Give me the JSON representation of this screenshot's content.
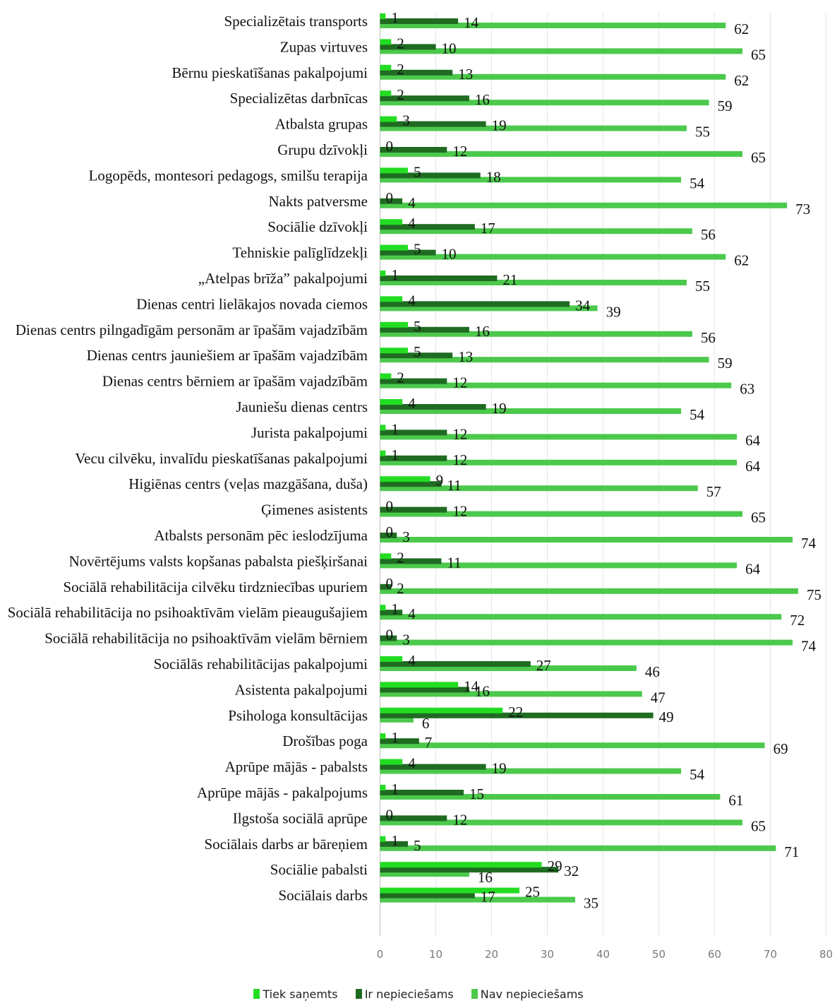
{
  "chart_data": {
    "type": "bar",
    "orientation": "horizontal",
    "categories": [
      "Specializētais transports",
      "Zupas virtuves",
      "Bērnu pieskatīšanas pakalpojumi",
      "Specializētas darbnīcas",
      "Atbalsta grupas",
      "Grupu dzīvokļi",
      "Logopēds, montesori pedagogs, smilšu terapija",
      "Nakts patversme",
      "Sociālie dzīvokļi",
      "Tehniskie palīglīdzekļi",
      "„Atelpas brīža” pakalpojumi",
      "Dienas centri lielākajos novada ciemos",
      "Dienas centrs pilngadīgām personām ar īpašām vajadzībām",
      "Dienas centrs jauniešiem ar īpašām vajadzībām",
      "Dienas centrs bērniem ar īpašām vajadzībām",
      "Jauniešu dienas centrs",
      "Jurista pakalpojumi",
      "Vecu cilvēku, invalīdu pieskatīšanas pakalpojumi",
      "Higiēnas centrs (veļas mazgāšana, duša)",
      "Ģimenes asistents",
      "Atbalsts personām pēc ieslodzījuma",
      "Novērtējums valsts kopšanas pabalsta piešķiršanai",
      "Sociālā rehabilitācija cilvēku tirdzniecības upuriem",
      "Sociālā rehabilitācija no psihoaktīvām vielām pieaugušajiem",
      "Sociālā rehabilitācija  no psihoaktīvām vielām bērniem",
      "Sociālās rehabilitācijas pakalpojumi",
      "Asistenta pakalpojumi",
      "Psihologa konsultācijas",
      "Drošības poga",
      "Aprūpe mājās - pabalsts",
      "Aprūpe mājās - pakalpojums",
      "Ilgstoša sociālā aprūpe",
      "Sociālais darbs ar bāreņiem",
      "Sociālie pabalsti",
      "Sociālais darbs"
    ],
    "series": [
      {
        "name": "Tiek saņemts",
        "color": "#22dd22",
        "values": [
          1,
          2,
          2,
          2,
          3,
          0,
          5,
          0,
          4,
          5,
          1,
          4,
          5,
          5,
          2,
          4,
          1,
          1,
          9,
          0,
          0,
          2,
          0,
          1,
          0,
          4,
          14,
          22,
          1,
          4,
          1,
          0,
          1,
          29,
          25
        ]
      },
      {
        "name": "Ir nepieciešams",
        "color": "#1f6b22",
        "values": [
          14,
          10,
          13,
          16,
          19,
          12,
          18,
          4,
          17,
          10,
          21,
          34,
          16,
          13,
          12,
          19,
          12,
          12,
          11,
          12,
          3,
          11,
          2,
          4,
          3,
          27,
          16,
          49,
          7,
          19,
          15,
          12,
          5,
          32,
          17
        ]
      },
      {
        "name": "Nav nepieciešams",
        "color": "#4cc94c",
        "values": [
          62,
          65,
          62,
          59,
          55,
          65,
          54,
          73,
          56,
          62,
          55,
          39,
          56,
          59,
          63,
          54,
          64,
          64,
          57,
          65,
          74,
          64,
          75,
          72,
          74,
          46,
          47,
          6,
          69,
          54,
          61,
          65,
          71,
          16,
          35
        ]
      }
    ],
    "xlim": [
      0,
      80
    ],
    "x_ticks": [
      "0",
      "10",
      "20",
      "30",
      "40",
      "50",
      "60",
      "70",
      "80"
    ],
    "grid": true,
    "legend_position": "bottom"
  }
}
